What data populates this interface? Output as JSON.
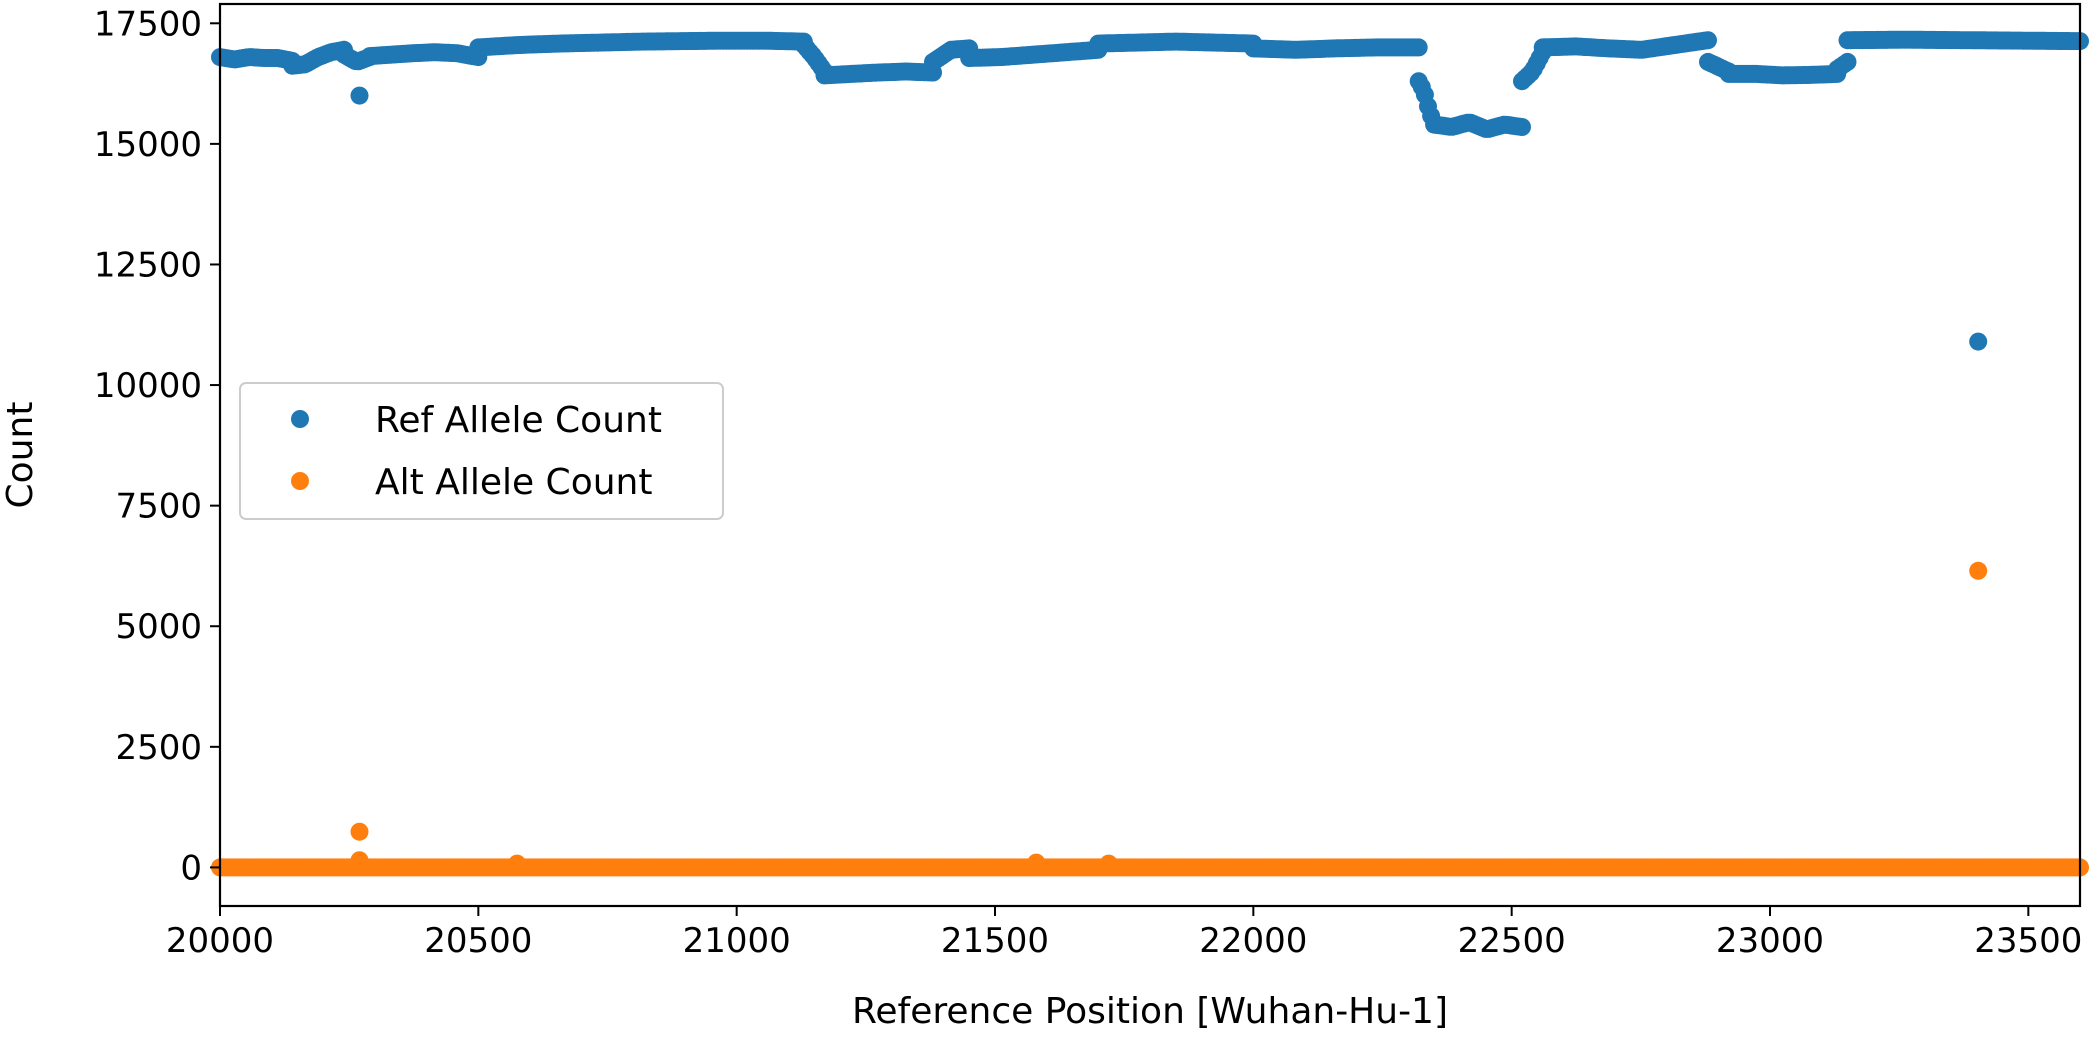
{
  "chart_data": {
    "type": "scatter",
    "xlabel": "Reference Position [Wuhan-Hu-1]",
    "ylabel": "Count",
    "xlim": [
      20000,
      23600
    ],
    "ylim": [
      -800,
      17900
    ],
    "x_ticks": [
      20000,
      20500,
      21000,
      21500,
      22000,
      22500,
      23000,
      23500
    ],
    "y_ticks": [
      0,
      2500,
      5000,
      7500,
      10000,
      12500,
      15000,
      17500
    ],
    "legend_position": "center-left",
    "grid": false,
    "series": [
      {
        "name": "Ref Allele Count",
        "color": "#1f77b4",
        "segments": [
          {
            "from": 20000,
            "to": 20140,
            "values": [
              16800,
              16750,
              16800,
              16780,
              16780,
              16720
            ]
          },
          {
            "from": 20140,
            "to": 20240,
            "values": [
              16620,
              16650,
              16800,
              16900,
              16950
            ]
          },
          {
            "from": 20240,
            "to": 20290,
            "values": [
              16850,
              16700,
              16800
            ]
          },
          {
            "from": 20290,
            "to": 20500,
            "values": [
              16820,
              16850,
              16880,
              16900,
              16880,
              16800
            ]
          },
          {
            "from": 20500,
            "to": 21130,
            "values": [
              17000,
              17050,
              17080,
              17100,
              17120,
              17130,
              17140,
              17140,
              17120
            ]
          },
          {
            "from": 21130,
            "to": 21170,
            "values": [
              17050,
              16800,
              16500
            ]
          },
          {
            "from": 21170,
            "to": 21380,
            "values": [
              16420,
              16450,
              16480,
              16500,
              16480
            ]
          },
          {
            "from": 21380,
            "to": 21450,
            "values": [
              16700,
              16950,
              16980
            ]
          },
          {
            "from": 21450,
            "to": 21700,
            "values": [
              16780,
              16800,
              16850,
              16900,
              16950
            ]
          },
          {
            "from": 21700,
            "to": 22000,
            "values": [
              17080,
              17100,
              17120,
              17100,
              17080
            ]
          },
          {
            "from": 22000,
            "to": 22320,
            "values": [
              16980,
              16950,
              16980,
              17000,
              17000
            ]
          },
          {
            "from": 22320,
            "to": 22350,
            "values": [
              16300,
              16100,
              15700,
              15400
            ]
          },
          {
            "from": 22350,
            "to": 22520,
            "values": [
              15400,
              15350,
              15450,
              15300,
              15400,
              15350
            ]
          },
          {
            "from": 22520,
            "to": 22560,
            "values": [
              16300,
              16500,
              16900
            ]
          },
          {
            "from": 22560,
            "to": 22880,
            "values": [
              17000,
              17020,
              16980,
              16950,
              17050,
              17150
            ]
          },
          {
            "from": 22880,
            "to": 22920,
            "values": [
              16700,
              16600,
              16500
            ]
          },
          {
            "from": 22920,
            "to": 23130,
            "values": [
              16450,
              16450,
              16420,
              16430,
              16450
            ]
          },
          {
            "from": 23130,
            "to": 23150,
            "values": [
              16550,
              16700
            ]
          },
          {
            "from": 23150,
            "to": 23600,
            "values": [
              17150,
              17160,
              17150,
              17140,
              17130
            ]
          }
        ],
        "outliers": [
          [
            20270,
            16000
          ],
          [
            23403,
            10900
          ]
        ]
      },
      {
        "name": "Alt Allele Count",
        "color": "#ff7f0e",
        "segments": [
          {
            "from": 20000,
            "to": 23600,
            "values": [
              0,
              0,
              0,
              0,
              0
            ]
          }
        ],
        "outliers": [
          [
            20270,
            740
          ],
          [
            20270,
            150
          ],
          [
            20575,
            80
          ],
          [
            21580,
            100
          ],
          [
            21720,
            80
          ],
          [
            23403,
            6150
          ]
        ]
      }
    ]
  }
}
